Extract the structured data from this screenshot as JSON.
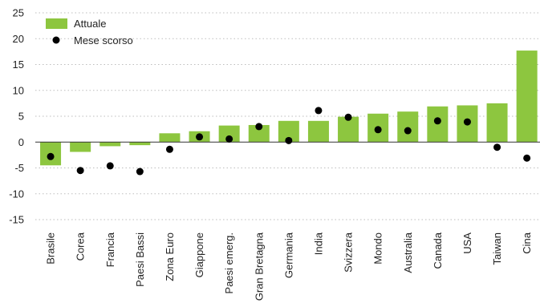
{
  "chart_data": {
    "type": "bar",
    "title": "",
    "xlabel": "",
    "ylabel": "",
    "ylim": [
      -15,
      25
    ],
    "yticks": [
      25,
      20,
      15,
      10,
      5,
      0,
      -5,
      -10,
      -15
    ],
    "grid": "horizontal dotted",
    "legend_position": "top-left",
    "categories": [
      "Brasile",
      "Corea",
      "Francia",
      "Paesi Bassi",
      "Zona Euro",
      "Giappone",
      "Paesi emerg.",
      "Gran Bretagna",
      "Germania",
      "India",
      "Svizzera",
      "Mondo",
      "Australia",
      "Canada",
      "USA",
      "Taiwan",
      "Cina"
    ],
    "series": [
      {
        "name": "Attuale",
        "kind": "bar",
        "color": "#8dc63f",
        "values": [
          -4.5,
          -1.9,
          -0.8,
          -0.6,
          1.7,
          2.1,
          3.2,
          3.3,
          4.1,
          4.1,
          4.9,
          5.5,
          5.9,
          6.9,
          7.1,
          7.5,
          17.7
        ]
      },
      {
        "name": "Mese scorso",
        "kind": "dot",
        "color": "#000000",
        "values": [
          -2.8,
          -5.5,
          -4.6,
          -5.7,
          -1.4,
          1.0,
          0.6,
          3.0,
          0.3,
          6.1,
          4.8,
          2.4,
          2.2,
          4.1,
          3.9,
          -1.0,
          -3.1
        ]
      }
    ]
  }
}
